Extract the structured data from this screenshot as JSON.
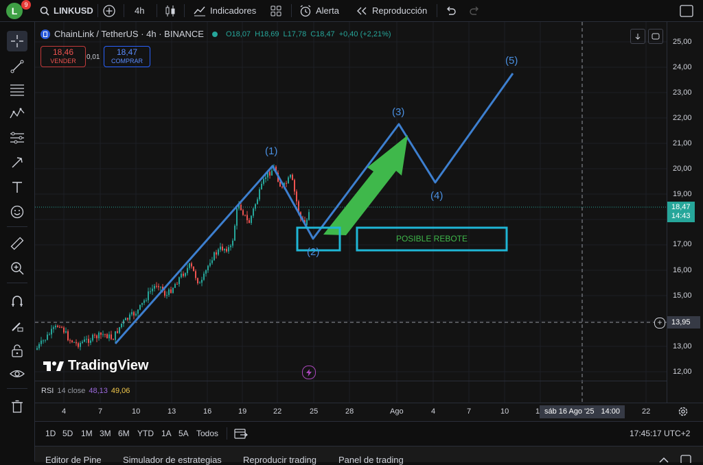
{
  "topbar": {
    "avatar_letter": "L",
    "notif_count": "9",
    "symbol": "LINKUSD",
    "interval": "4h",
    "indicators_label": "Indicadores",
    "alert_label": "Alerta",
    "replay_label": "Reproducción"
  },
  "legend": {
    "title": "ChainLink / TetherUS · 4h · BINANCE",
    "open": "O18,07",
    "high": "H18,69",
    "low": "L17,78",
    "close": "C18,47",
    "change": "+0,40 (+2,21%)",
    "sell_price": "18,46",
    "sell_label": "VENDER",
    "spread": "0,01",
    "buy_price": "18,47",
    "buy_label": "COMPRAR"
  },
  "annotations": {
    "wave1": "(1)",
    "wave2": "(2)",
    "wave3": "(3)",
    "wave4": "(4)",
    "wave5": "(5)",
    "rebound_label": "POSIBLE REBOTE"
  },
  "watermark": "TradingView",
  "rsi": {
    "label": "RSI",
    "params": "14 close",
    "v1": "48,13",
    "v2": "49,06"
  },
  "price_axis": {
    "labels": [
      "25,00",
      "24,00",
      "23,00",
      "22,00",
      "21,00",
      "20,00",
      "19,00",
      "17,00",
      "16,00",
      "15,00",
      "14,00",
      "13,00",
      "12,00"
    ],
    "last_price": "18,47",
    "countdown": "14:43",
    "crosshair_price": "13,95"
  },
  "time_axis": {
    "labels": [
      "4",
      "7",
      "10",
      "13",
      "16",
      "19",
      "22",
      "25",
      "28",
      "Ago",
      "4",
      "7",
      "10",
      "1",
      "22"
    ],
    "crosshair_date": "sáb 16 Ago '25",
    "crosshair_time": "14:00"
  },
  "ranges": [
    "1D",
    "5D",
    "1M",
    "3M",
    "6M",
    "YTD",
    "1A",
    "5A",
    "Todos"
  ],
  "clock": "17:45:17 UTC+2",
  "bottom_tabs": [
    "Editor de Pine",
    "Simulador de estrategias",
    "Reproducir trading",
    "Panel de trading"
  ],
  "colors": {
    "up": "#26a69a",
    "down": "#ef5350",
    "wave": "#3d7fcf",
    "box": "#1fb6d5",
    "arrow": "#3fb84b",
    "brand": "#2962ff"
  }
}
